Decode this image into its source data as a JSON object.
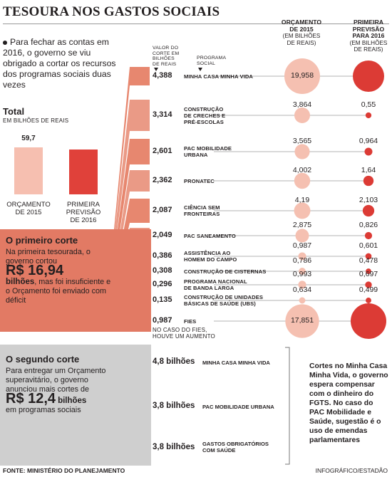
{
  "title": "TESOURA NOS GASTOS SOCIAIS",
  "intro": "Para fechar as contas em 2016, o governo se viu obrigado a cortar os recursos dos programas sociais duas vezes",
  "total": {
    "heading": "Total",
    "unit": "EM BILHÕES DE REAIS",
    "bars": [
      {
        "label_line1": "ORÇAMENTO",
        "label_line2": "DE 2015",
        "value": 59.7,
        "value_label": "59,7",
        "color": "#f6bfb0"
      },
      {
        "label_line1": "PRIMEIRA",
        "label_line2": "PREVISÃO",
        "label_line3": "DE 2016",
        "value": null,
        "value_label": "",
        "color": "#e0413a"
      }
    ]
  },
  "corte1": {
    "heading": "O primeiro corte",
    "text_before": "Na primeira tesourada, o governo cortou",
    "big": "R$ 16,94",
    "big_unit": "bilhões",
    "text_after": ", mas foi insuficiente e o Orçamento foi enviado com déficit"
  },
  "corte2": {
    "heading": "O segundo corte",
    "text_before": "Para entregar um Orçamento superavitário, o governo anunciou mais cortes de",
    "big": "R$ 12,4",
    "big_unit": "bilhões",
    "text_after": "em programas sociais",
    "items": [
      {
        "value": "4,8 bilhões",
        "name": "MINHA CASA MINHA VIDA"
      },
      {
        "value": "3,8 bilhões",
        "name": "PAC MOBILIDADE URBANA"
      },
      {
        "value": "3,8 bilhões",
        "name_line1": "GASTOS OBRIGATÓRIOS",
        "name_line2": "COM SAÚDE"
      }
    ]
  },
  "headers": {
    "valor_corte": [
      "VALOR DO",
      "CORTE EM",
      "BILHÕES",
      "DE REAIS"
    ],
    "programa": [
      "PROGRAMA",
      "SOCIAL"
    ],
    "orcamento": [
      "ORÇAMENTO",
      "DE 2015"
    ],
    "orcamento_unit": [
      "(EM BILHÕES",
      "DE REAIS)"
    ],
    "previsao": [
      "PRIMEIRA",
      "PREVISÃO",
      "PARA 2016"
    ],
    "previsao_unit": [
      "(EM BILHÕES",
      "DE REAIS)"
    ]
  },
  "fies_note": [
    "NO CASO DO FIES,",
    "HOUVE UM AUMENTO"
  ],
  "note": "Cortes no Minha Casa Minha Vida, o governo espera compensar com o dinheiro do FGTS. No caso do PAC Mobilidade e Saúde, sugestão é o uso de emendas parlamentares",
  "footer": {
    "source": "FONTE: MINISTÉRIO DO PLANEJAMENTO",
    "credit": "INFOGRÁFICO/ESTADÃO"
  },
  "colors": {
    "salmon": "#e27a64",
    "light": "#f6c3b4",
    "red": "#e0413a",
    "circle_light": "#f5c0b1",
    "circle_dark": "#dc3b35",
    "grey": "#cfcfcf"
  },
  "chart_data": {
    "type": "table",
    "columns": [
      "Valor do corte em bilhões de reais",
      "Programa social",
      "Orçamento de 2015 (em bilhões de reais)",
      "Primeira previsão para 2016 (em bilhões de reais)"
    ],
    "rows": [
      {
        "corte": "4,388",
        "name_line1": "MINHA CASA MINHA VIDA",
        "name_line2": "",
        "orc2015": 19.958,
        "orc2015_label": "19,958",
        "prev2016": null,
        "prev2016_label": ""
      },
      {
        "corte": "3,314",
        "name_line1": "CONSTRUÇÃO",
        "name_line2": "DE CRECHES E",
        "name_line3": "PRÉ-ESCOLAS",
        "orc2015": 3.864,
        "orc2015_label": "3,864",
        "prev2016": 0.55,
        "prev2016_label": "0,55"
      },
      {
        "corte": "2,601",
        "name_line1": "PAC MOBILIDADE",
        "name_line2": "URBANA",
        "orc2015": 3.565,
        "orc2015_label": "3,565",
        "prev2016": 0.964,
        "prev2016_label": "0,964"
      },
      {
        "corte": "2,362",
        "name_line1": "PRONATEC",
        "name_line2": "",
        "orc2015": 4.002,
        "orc2015_label": "4,002",
        "prev2016": 1.64,
        "prev2016_label": "1,64"
      },
      {
        "corte": "2,087",
        "name_line1": "CIÊNCIA SEM",
        "name_line2": "FRONTEIRAS",
        "orc2015": 4.19,
        "orc2015_label": "4,19",
        "prev2016": 2.103,
        "prev2016_label": "2,103"
      },
      {
        "corte": "2,049",
        "name_line1": "PAC SANEAMENTO",
        "name_line2": "",
        "orc2015": 2.875,
        "orc2015_label": "2,875",
        "prev2016": 0.826,
        "prev2016_label": "0,826"
      },
      {
        "corte": "0,386",
        "name_line1": "ASSISTÊNCIA AO",
        "name_line2": "HOMEM DO CAMPO",
        "orc2015": 0.987,
        "orc2015_label": "0,987",
        "prev2016": 0.601,
        "prev2016_label": "0,601"
      },
      {
        "corte": "0,308",
        "name_line1": "CONSTRUÇÃO DE CISTERNAS",
        "name_line2": "",
        "orc2015": 0.786,
        "orc2015_label": "0,786",
        "prev2016": 0.478,
        "prev2016_label": "0,478"
      },
      {
        "corte": "0,296",
        "name_line1": "PROGRAMA NACIONAL",
        "name_line2": "DE BANDA LARGA",
        "orc2015": 0.993,
        "orc2015_label": "0,993",
        "prev2016": 0.697,
        "prev2016_label": "0,697"
      },
      {
        "corte": "0,135",
        "name_line1": "CONSTRUÇÃO DE UNIDADES",
        "name_line2": "BÁSICAS DE SAÚDE (UBS)",
        "orc2015": 0.634,
        "orc2015_label": "0,634",
        "prev2016": 0.499,
        "prev2016_label": "0,499"
      },
      {
        "corte": "0,987",
        "name_line1": "FIES",
        "name_line2": "",
        "orc2015": 17.851,
        "orc2015_label": "17,851",
        "prev2016": null,
        "prev2016_label": ""
      }
    ]
  }
}
